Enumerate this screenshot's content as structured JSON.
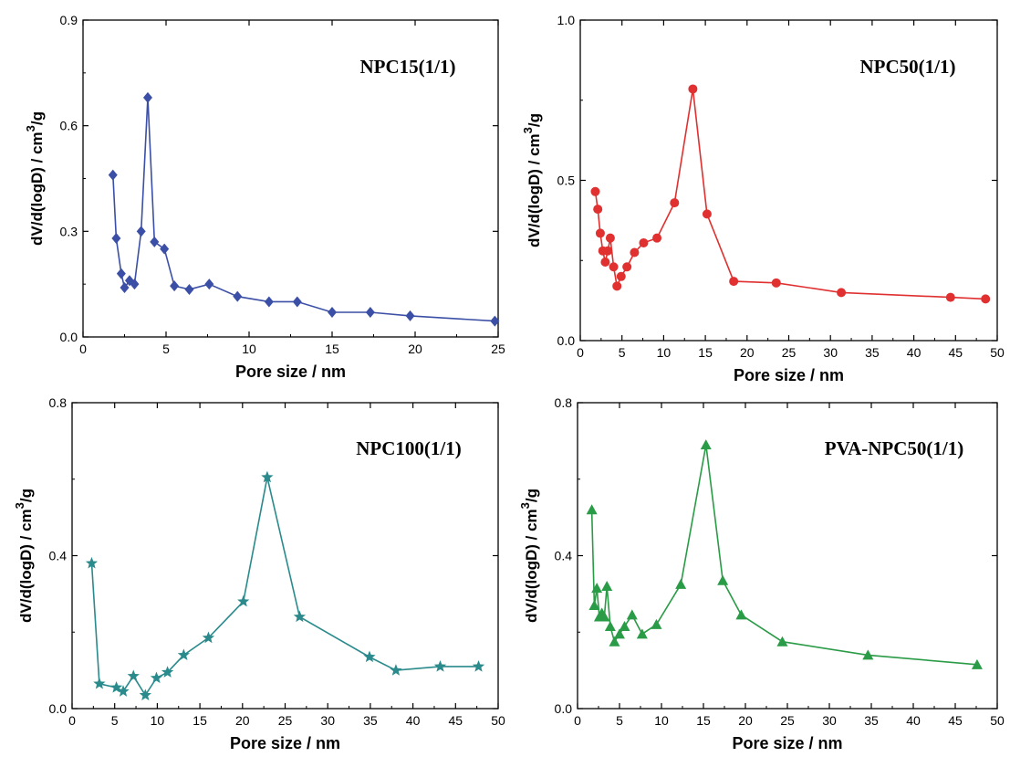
{
  "chart_data": [
    {
      "type": "line",
      "panel_label": "NPC15(1/1)",
      "xlabel": "Pore size / nm",
      "ylabel": "dV/d(logD) / cm",
      "ylabel_sup": "3",
      "ylabel_tail": "/g",
      "xlim": [
        0,
        25
      ],
      "ylim": [
        0,
        0.9
      ],
      "xticks": [
        0,
        5,
        10,
        15,
        20,
        25
      ],
      "xtick_labels": [
        "0",
        "5",
        "10",
        "15",
        "20",
        "25"
      ],
      "yticks": [
        0,
        0.3,
        0.6,
        0.9
      ],
      "ytick_labels": [
        "0.0",
        "0.3",
        "0.6",
        "0.9"
      ],
      "color": "#3b4fa6",
      "marker": "diamond",
      "series": [
        {
          "x": [
            1.8,
            2.0,
            2.3,
            2.5,
            2.8,
            3.1,
            3.5,
            3.9,
            4.3,
            4.9,
            5.5,
            6.4,
            7.6,
            9.3,
            11.2,
            12.9,
            15.0,
            17.3,
            19.7,
            24.8
          ],
          "y": [
            0.46,
            0.28,
            0.18,
            0.14,
            0.16,
            0.15,
            0.3,
            0.68,
            0.27,
            0.25,
            0.145,
            0.135,
            0.15,
            0.115,
            0.1,
            0.1,
            0.07,
            0.07,
            0.06,
            0.045
          ]
        }
      ]
    },
    {
      "type": "line",
      "panel_label": "NPC50(1/1)",
      "xlabel": "Pore size / nm",
      "ylabel": "dV/d(logD) / cm",
      "ylabel_sup": "3",
      "ylabel_tail": "/g",
      "xlim": [
        0,
        50
      ],
      "ylim": [
        0,
        1.0
      ],
      "xticks": [
        0,
        5,
        10,
        15,
        20,
        25,
        30,
        35,
        40,
        45,
        50
      ],
      "xtick_labels": [
        "0",
        "5",
        "10",
        "15",
        "20",
        "25",
        "30",
        "35",
        "40",
        "45",
        "50"
      ],
      "yticks": [
        0,
        0.5,
        1.0
      ],
      "ytick_labels": [
        "0.0",
        "0.5",
        "1.0"
      ],
      "color": "#e03030",
      "marker": "circle",
      "series": [
        {
          "x": [
            1.8,
            2.1,
            2.4,
            2.7,
            3.0,
            3.3,
            3.6,
            4.0,
            4.4,
            4.9,
            5.6,
            6.5,
            7.6,
            9.2,
            11.3,
            13.5,
            15.2,
            18.4,
            23.5,
            31.3,
            44.4,
            48.6
          ],
          "y": [
            0.465,
            0.41,
            0.335,
            0.28,
            0.245,
            0.28,
            0.32,
            0.23,
            0.17,
            0.2,
            0.23,
            0.275,
            0.305,
            0.32,
            0.43,
            0.785,
            0.395,
            0.185,
            0.18,
            0.15,
            0.135,
            0.13
          ]
        }
      ]
    },
    {
      "type": "line",
      "panel_label": "NPC100(1/1)",
      "xlabel": "Pore size / nm",
      "ylabel": "dV/d(logD) / cm",
      "ylabel_sup": "3",
      "ylabel_tail": "/g",
      "xlim": [
        0,
        50
      ],
      "ylim": [
        0,
        0.8
      ],
      "xticks": [
        0,
        5,
        10,
        15,
        20,
        25,
        30,
        35,
        40,
        45,
        50
      ],
      "xtick_labels": [
        "0",
        "5",
        "10",
        "15",
        "20",
        "25",
        "30",
        "35",
        "40",
        "45",
        "50"
      ],
      "yticks": [
        0,
        0.4,
        0.8
      ],
      "ytick_labels": [
        "0.0",
        "0.4",
        "0.8"
      ],
      "color": "#2a8a8c",
      "marker": "star",
      "series": [
        {
          "x": [
            2.3,
            3.2,
            5.2,
            6.0,
            7.2,
            8.6,
            9.9,
            11.2,
            13.1,
            16.0,
            20.1,
            22.9,
            26.7,
            34.9,
            38.0,
            43.2,
            47.7
          ],
          "y": [
            0.38,
            0.065,
            0.055,
            0.045,
            0.085,
            0.035,
            0.08,
            0.095,
            0.14,
            0.185,
            0.28,
            0.605,
            0.24,
            0.135,
            0.1,
            0.11,
            0.11
          ]
        }
      ]
    },
    {
      "type": "line",
      "panel_label": "PVA-NPC50(1/1)",
      "xlabel": "Pore size / nm",
      "ylabel": "dV/d(logD) / cm",
      "ylabel_sup": "3",
      "ylabel_tail": "/g",
      "xlim": [
        0,
        50
      ],
      "ylim": [
        0,
        0.8
      ],
      "xticks": [
        0,
        5,
        10,
        15,
        20,
        25,
        30,
        35,
        40,
        45,
        50
      ],
      "xtick_labels": [
        "0",
        "5",
        "10",
        "15",
        "20",
        "25",
        "30",
        "35",
        "40",
        "45",
        "50"
      ],
      "yticks": [
        0,
        0.4,
        0.8
      ],
      "ytick_labels": [
        "0.0",
        "0.4",
        "0.8"
      ],
      "color": "#2a9b46",
      "marker": "triangle",
      "series": [
        {
          "x": [
            1.7,
            2.0,
            2.3,
            2.6,
            2.9,
            3.2,
            3.5,
            3.9,
            4.4,
            5.0,
            5.6,
            6.5,
            7.7,
            9.4,
            12.3,
            15.3,
            17.3,
            19.5,
            24.4,
            34.6,
            47.6
          ],
          "y": [
            0.52,
            0.27,
            0.315,
            0.24,
            0.25,
            0.24,
            0.32,
            0.215,
            0.175,
            0.195,
            0.215,
            0.245,
            0.195,
            0.22,
            0.325,
            0.69,
            0.335,
            0.245,
            0.175,
            0.14,
            0.115
          ]
        }
      ]
    }
  ]
}
